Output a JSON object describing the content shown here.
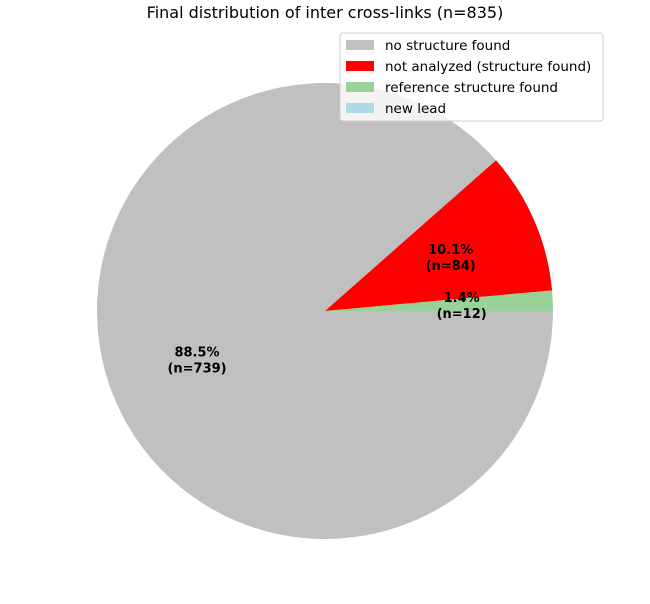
{
  "chart_data": {
    "type": "pie",
    "title": "Final distribution of inter cross-links (n=835)",
    "legend_position": "top-right",
    "start_angle_deg": 0,
    "direction": "clockwise",
    "slices": [
      {
        "label": "no structure found",
        "value": 739,
        "pct_label": "88.5%",
        "n_label": "(n=739)",
        "color": "#c0c0c0"
      },
      {
        "label": "not analyzed (structure found)",
        "value": 84,
        "pct_label": "10.1%",
        "n_label": "(n=84)",
        "color": "#ff0000"
      },
      {
        "label": "reference structure found",
        "value": 12,
        "pct_label": "1.4%",
        "n_label": "(n=12)",
        "color": "#99d299"
      },
      {
        "label": "new lead",
        "value": 0,
        "pct_label": "",
        "n_label": "",
        "color": "#add8e6"
      }
    ]
  }
}
